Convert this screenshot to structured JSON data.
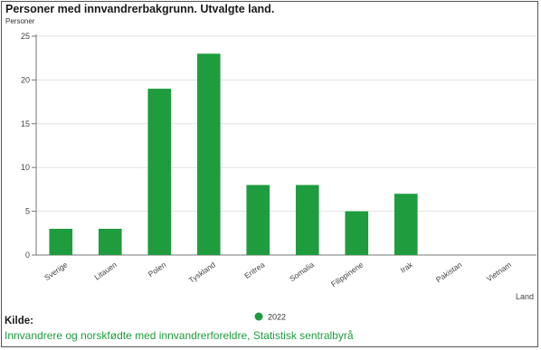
{
  "chart_data": {
    "type": "bar",
    "title": "Personer med innvandrerbakgrunn. Utvalgte land.",
    "ylabel": "Personer",
    "xlabel": "Land",
    "categories": [
      "Sverige",
      "Litauen",
      "Polen",
      "Tyskland",
      "Eritrea",
      "Somalia",
      "Filippinene",
      "Irak",
      "Pakistan",
      "Vietnam"
    ],
    "series": [
      {
        "name": "2022",
        "values": [
          3,
          3,
          19,
          23,
          8,
          8,
          5,
          7,
          0,
          0
        ]
      }
    ],
    "ylim": [
      0,
      25
    ],
    "yticks": [
      "0",
      "5",
      "10",
      "15",
      "20",
      "25"
    ],
    "grid": true,
    "legend": "bottom-center",
    "bar_color": "#1f9c3e"
  },
  "source": {
    "heading": "Kilde:",
    "text": "Innvandrere og norskfødte med innvandrerforeldre, Statistisk sentralbyrå"
  }
}
